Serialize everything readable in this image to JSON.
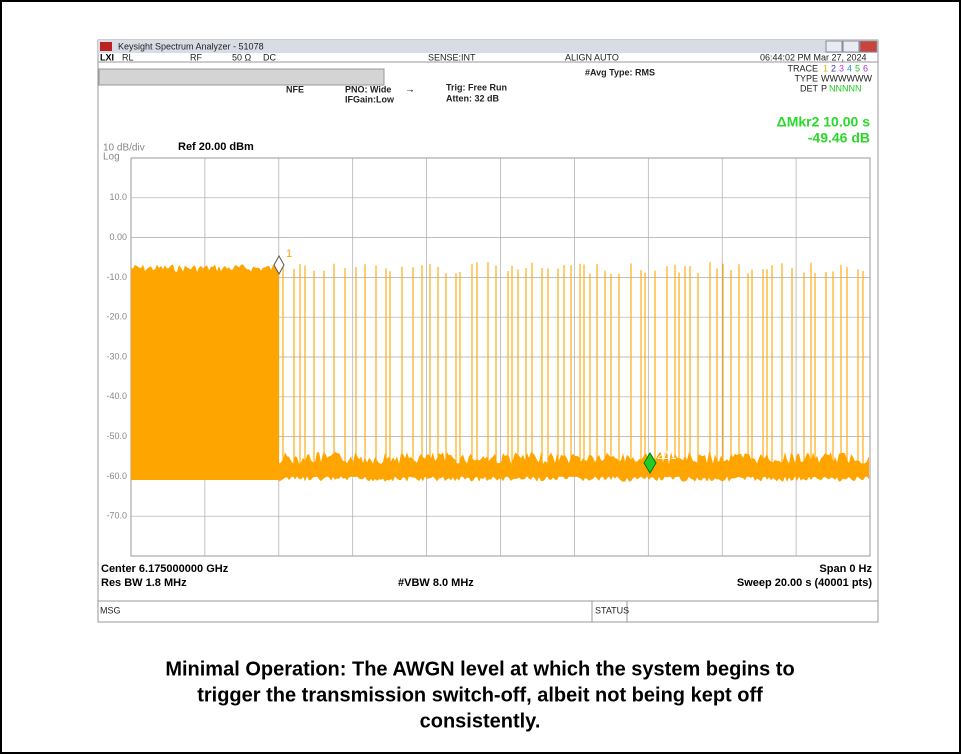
{
  "window": {
    "title": "Keysight Spectrum Analyzer - 51078",
    "status_row": [
      "RL",
      "RF",
      "50 Ω",
      "DC",
      "SENSE:INT",
      "ALIGN AUTO",
      "06:44:02 PM Mar 27, 2024"
    ],
    "settings": {
      "nfe": "NFE",
      "pno": "PNO: Wide",
      "ifgain": "IFGain:Low",
      "trig": "Trig: Free Run",
      "atten": "Atten: 32 dB",
      "avg": "#Avg Type: RMS"
    },
    "trace_panel": {
      "trace_label": "TRACE",
      "trace_nums": [
        "1",
        "2",
        "3",
        "4",
        "5",
        "6"
      ],
      "type_label": "TYPE",
      "type_value": "WWWWWW",
      "det_label": "DET",
      "det_first": "P",
      "det_rest": "NNNNN"
    },
    "marker_readout": {
      "line1": "ΔMkr2 10.00 s",
      "line2": "-49.46 dB"
    },
    "scale": {
      "div": "10 dB/div",
      "log": "Log",
      "ref": "Ref 20.00 dBm"
    },
    "y_labels": [
      "10.0",
      "0.00",
      "-10.0",
      "-20.0",
      "-30.0",
      "-40.0",
      "-50.0",
      "-60.0",
      "-70.0"
    ],
    "markers": {
      "m1": "1",
      "m2": "2Δ1"
    },
    "footer": {
      "center": "Center 6.175000000 GHz",
      "span": "Span 0 Hz",
      "rbw": "Res BW 1.8 MHz",
      "vbw": "#VBW 8.0 MHz",
      "sweep": "Sweep  20.00 s (40001 pts)"
    },
    "statusbar": {
      "msg": "MSG",
      "status": "STATUS"
    }
  },
  "caption": [
    "Minimal Operation: The AWGN level at which the system begins to",
    "trigger the transmission switch-off, albeit not being kept off",
    "consistently."
  ]
}
